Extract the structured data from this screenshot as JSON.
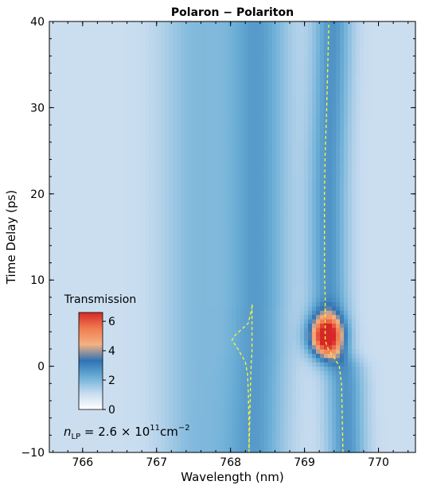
{
  "chart_data": {
    "type": "heatmap",
    "title": "Polaron − Polariton",
    "xlabel": "Wavelength (nm)",
    "ylabel": "Time Delay (ps)",
    "xlim": [
      765.55,
      770.5
    ],
    "ylim": [
      -10,
      40
    ],
    "xticks": [
      766,
      767,
      768,
      769,
      770
    ],
    "yticks": [
      -10,
      0,
      10,
      20,
      30,
      40
    ],
    "colorbar": {
      "label": "Transmission",
      "range": [
        0,
        6.6
      ],
      "ticks": [
        0,
        2,
        4,
        6
      ],
      "colors": [
        "#ffffff",
        "#c6dbef",
        "#6baed6",
        "#2f73b3",
        "#f4b183",
        "#f07c50",
        "#d62728"
      ]
    },
    "annotation": {
      "base": "n",
      "base_sub": "LP",
      "middle": " = 2.6 × 10",
      "exp": "11",
      "unit": "cm",
      "unit_exp": "−2"
    },
    "features": {
      "background_transmission": 1.0,
      "band_left": {
        "center_nm": 768.35,
        "width_nm": 0.42,
        "peak": 2.5
      },
      "band_right": {
        "center_nm": 769.38,
        "width_nm": 0.26,
        "peak": 2.7
      },
      "hotspot": {
        "center_nm": 769.3,
        "center_ps": 3.6,
        "peak": 6.6
      }
    },
    "series": [
      {
        "style": "dashed",
        "color": "#f2f23a",
        "x": [
          768.25,
          768.26,
          768.27,
          768.28,
          768.29,
          768.29,
          768.3,
          768.24,
          768.05,
          768.02,
          768.1,
          768.2,
          768.23,
          768.24,
          768.25,
          768.25
        ],
        "y": [
          -10,
          -6,
          -2,
          0.5,
          1.5,
          7,
          7.2,
          5,
          3.5,
          3.0,
          2.0,
          0.5,
          -1.0,
          -3,
          -7,
          -10
        ]
      },
      {
        "style": "dashed",
        "color": "#f2f23a",
        "x": [
          769.52,
          769.51,
          769.5,
          769.47,
          769.4,
          769.32,
          769.28,
          769.28,
          769.28,
          769.27,
          769.27,
          769.27,
          769.28,
          769.3,
          769.33
        ],
        "y": [
          -10,
          -6,
          -2,
          0,
          1,
          2,
          3,
          5,
          8,
          11,
          15,
          20,
          25,
          30,
          40
        ]
      }
    ]
  }
}
